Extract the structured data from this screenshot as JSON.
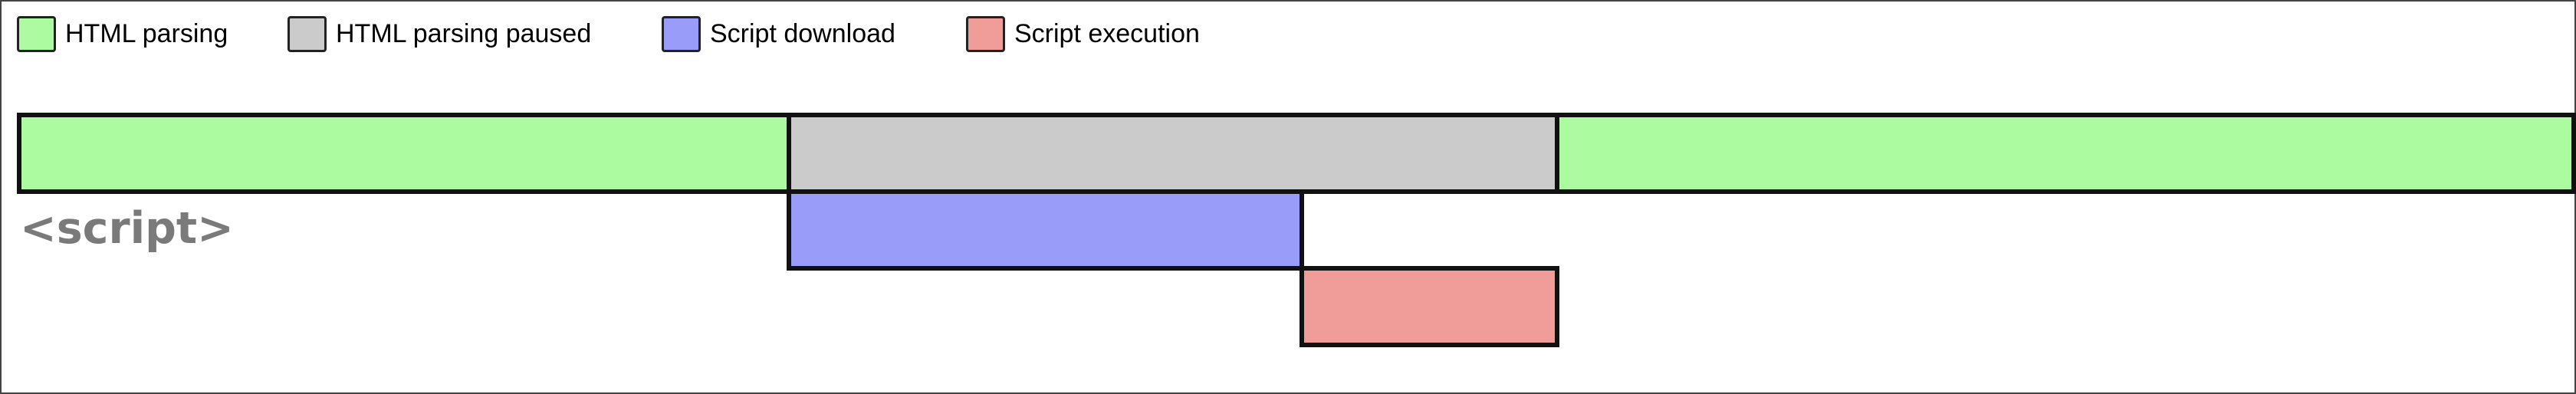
{
  "legend": {
    "html_parsing": "HTML parsing",
    "html_parsing_paused": "HTML parsing paused",
    "script_download": "Script download",
    "script_execution": "Script execution"
  },
  "colors": {
    "html_parsing": "#adfba0",
    "html_parsing_paused": "#cbcbcb",
    "script_download": "#999cf9",
    "script_execution": "#f09d99",
    "outline": "#111111"
  },
  "script_tag_label": "<script>",
  "timeline": {
    "parsing_before": [
      0,
      0.3
    ],
    "parsing_paused": [
      0.3,
      0.6
    ],
    "parsing_after": [
      0.6,
      1
    ],
    "script_download": [
      0.3,
      0.5
    ],
    "script_execution": [
      0.5,
      0.6
    ]
  }
}
